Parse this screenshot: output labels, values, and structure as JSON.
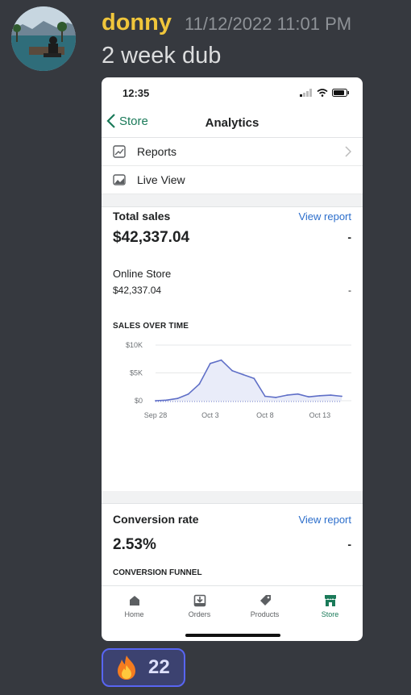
{
  "message": {
    "username": "donny",
    "timestamp": "11/12/2022 11:01 PM",
    "text": "2 week dub",
    "reaction": {
      "emoji": "fire-icon",
      "count": "22"
    }
  },
  "phone": {
    "status_time": "12:35",
    "nav": {
      "back_label": "Store",
      "title": "Analytics"
    },
    "menu": [
      {
        "label": "Reports",
        "icon": "reports-icon"
      },
      {
        "label": "Live View",
        "icon": "live-view-icon"
      }
    ],
    "total_sales": {
      "title": "Total sales",
      "view_report": "View report",
      "value": "$42,337.04",
      "change": "-",
      "channel_label": "Online Store",
      "channel_value": "$42,337.04",
      "channel_change": "-"
    },
    "sales_over_time_label": "SALES OVER TIME",
    "conversion": {
      "title": "Conversion rate",
      "view_report": "View report",
      "value": "2.53%",
      "change": "-",
      "funnel_label": "CONVERSION FUNNEL"
    },
    "tabs": [
      {
        "label": "Home",
        "icon": "home-icon",
        "active": false
      },
      {
        "label": "Orders",
        "icon": "orders-icon",
        "active": false
      },
      {
        "label": "Products",
        "icon": "products-icon",
        "active": false
      },
      {
        "label": "Store",
        "icon": "store-icon",
        "active": true
      }
    ],
    "accent_color": "#1a7a59",
    "link_color": "#2c6ecb"
  },
  "chart_data": {
    "type": "line",
    "title": "SALES OVER TIME",
    "y_tick_labels": [
      "$0",
      "$5K",
      "$10K"
    ],
    "ylim": [
      0,
      10000
    ],
    "x_tick_labels": [
      "Sep 28",
      "Oct 3",
      "Oct 8",
      "Oct 13"
    ],
    "x": [
      "Sep 28",
      "Sep 29",
      "Sep 30",
      "Oct 1",
      "Oct 2",
      "Oct 3",
      "Oct 4",
      "Oct 5",
      "Oct 6",
      "Oct 7",
      "Oct 8",
      "Oct 9",
      "Oct 10",
      "Oct 11",
      "Oct 12",
      "Oct 13",
      "Oct 14",
      "Oct 15"
    ],
    "series": [
      {
        "values": [
          0,
          100,
          400,
          1200,
          3000,
          6700,
          7300,
          5400,
          4700,
          4000,
          800,
          600,
          1000,
          1200,
          700,
          900,
          1000,
          800
        ]
      }
    ],
    "grid": true
  }
}
